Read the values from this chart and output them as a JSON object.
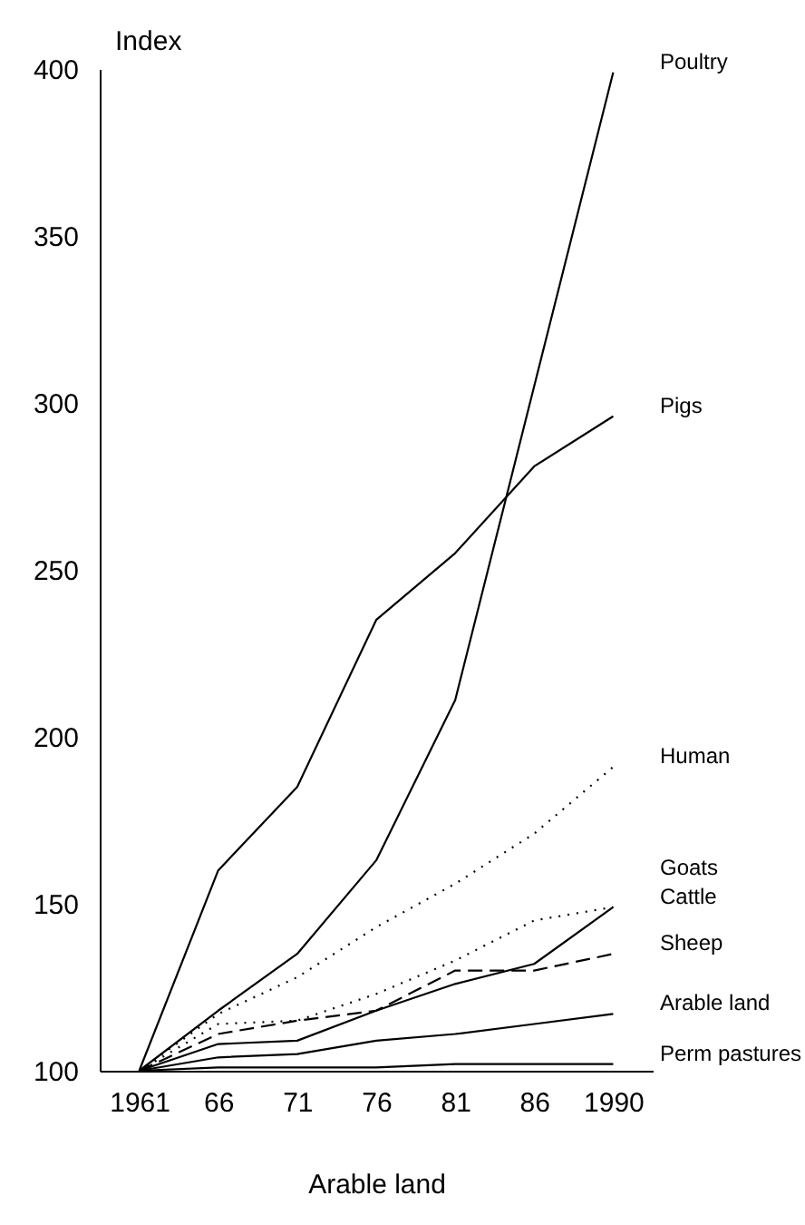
{
  "chart_data": {
    "type": "line",
    "ylabel": "Index",
    "xlabel": "Arable land",
    "categories": [
      "1961",
      "66",
      "71",
      "76",
      "81",
      "86",
      "1990"
    ],
    "ylim": [
      100,
      400
    ],
    "yticks": [
      100,
      150,
      200,
      250,
      300,
      350,
      400
    ],
    "grid": false,
    "legend": false,
    "marker": "none",
    "series": [
      {
        "name": "Poultry",
        "color": "#000000",
        "line_style": "solid",
        "values": [
          100,
          118,
          135,
          163,
          211,
          305,
          399
        ]
      },
      {
        "name": "Pigs",
        "color": "#000000",
        "line_style": "solid",
        "values": [
          100,
          160,
          185,
          235,
          255,
          281,
          296
        ]
      },
      {
        "name": "Human",
        "color": "#000000",
        "line_style": "dotted",
        "values": [
          100,
          117,
          128,
          143,
          156,
          171,
          191
        ]
      },
      {
        "name": "Goats",
        "color": "#000000",
        "line_style": "dotted",
        "values": [
          100,
          114,
          115,
          123,
          133,
          145,
          149
        ]
      },
      {
        "name": "Cattle",
        "color": "#000000",
        "line_style": "solid",
        "values": [
          100,
          108,
          109,
          118,
          126,
          132,
          149
        ]
      },
      {
        "name": "Sheep",
        "color": "#000000",
        "line_style": "dashed",
        "values": [
          100,
          111,
          115,
          118,
          130,
          130,
          135
        ]
      },
      {
        "name": "Arable land",
        "color": "#000000",
        "line_style": "solid",
        "values": [
          100,
          104,
          105,
          109,
          111,
          114,
          117
        ]
      },
      {
        "name": "Perm pastures",
        "color": "#000000",
        "line_style": "solid",
        "values": [
          100,
          101,
          101,
          101,
          102,
          102,
          102
        ]
      }
    ]
  }
}
